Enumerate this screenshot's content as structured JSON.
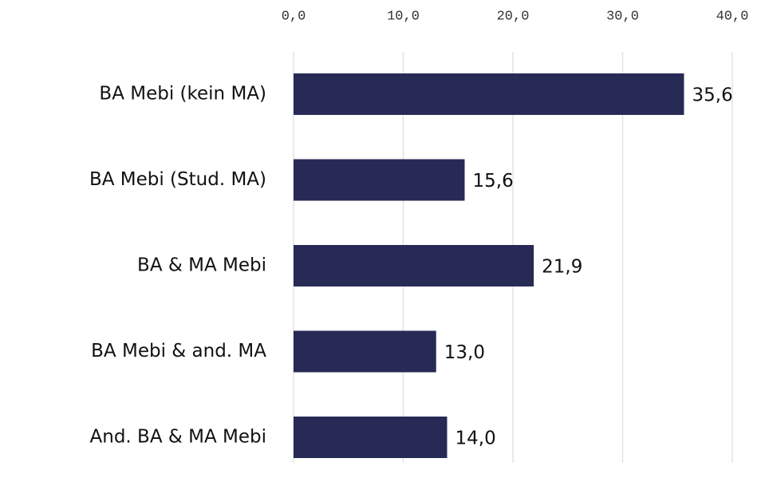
{
  "chart_data": {
    "type": "barh",
    "categories": [
      "BA Mebi (kein MA)",
      "BA Mebi (Stud. MA)",
      "BA & MA Mebi",
      "BA Mebi & and. MA",
      "And. BA & MA Mebi"
    ],
    "values": [
      35.6,
      15.6,
      21.9,
      13.0,
      14.0
    ],
    "value_labels": [
      "35,6",
      "15,6",
      "21,9",
      "13,0",
      "14,0"
    ],
    "color": "#272a55",
    "xlim": [
      0,
      40
    ],
    "xticks": [
      {
        "value": 0,
        "label": "0,0"
      },
      {
        "value": 10,
        "label": "10,0"
      },
      {
        "value": 20,
        "label": "20,0"
      },
      {
        "value": 30,
        "label": "30,0"
      },
      {
        "value": 40,
        "label": "40,0"
      }
    ],
    "grid": true
  }
}
